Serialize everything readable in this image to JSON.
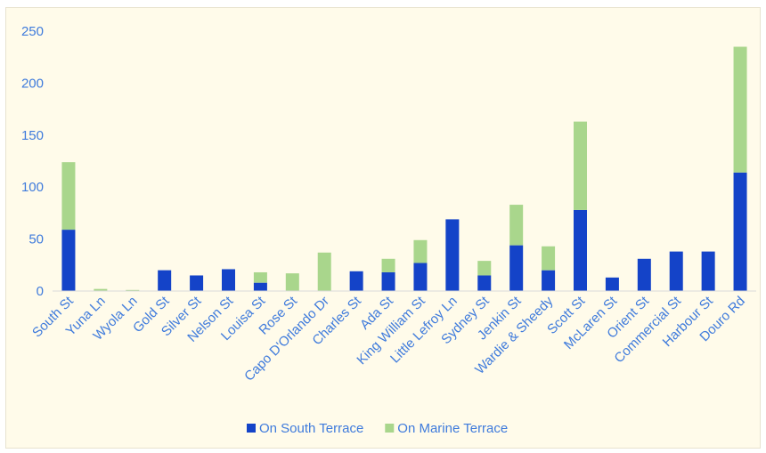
{
  "chart_data": {
    "type": "bar",
    "stacked": true,
    "categories": [
      "South St",
      "Yuna Ln",
      "Wyola Ln",
      "Gold St",
      "Silver St",
      "Nelson St",
      "Louisa St",
      "Rose St",
      "Capo D'Orlando Dr",
      "Charles St",
      "Ada St",
      "King William St",
      "Little Lefroy Ln",
      "Sydney St",
      "Jenkin St",
      "Wardie & Sheedy",
      "Scott St",
      "McLaren St",
      "Orient St",
      "Commercial St",
      "Harbour St",
      "Douro Rd"
    ],
    "series": [
      {
        "name": "On South Terrace",
        "color": "#1443c8",
        "values": [
          59,
          0,
          0,
          20,
          15,
          21,
          8,
          0,
          0,
          19,
          18,
          27,
          69,
          15,
          44,
          20,
          78,
          13,
          31,
          38,
          38,
          114
        ]
      },
      {
        "name": "On Marine Terrace",
        "color": "#a9d68c",
        "values": [
          65,
          2,
          1,
          0,
          0,
          0,
          10,
          17,
          37,
          0,
          13,
          22,
          0,
          14,
          39,
          23,
          85,
          0,
          0,
          0,
          0,
          121
        ]
      }
    ],
    "ylim": [
      0,
      250
    ],
    "yticks": [
      0,
      50,
      100,
      150,
      200,
      250
    ],
    "grid": false,
    "legend": "bottom",
    "title": "",
    "xlabel": "",
    "ylabel": ""
  }
}
